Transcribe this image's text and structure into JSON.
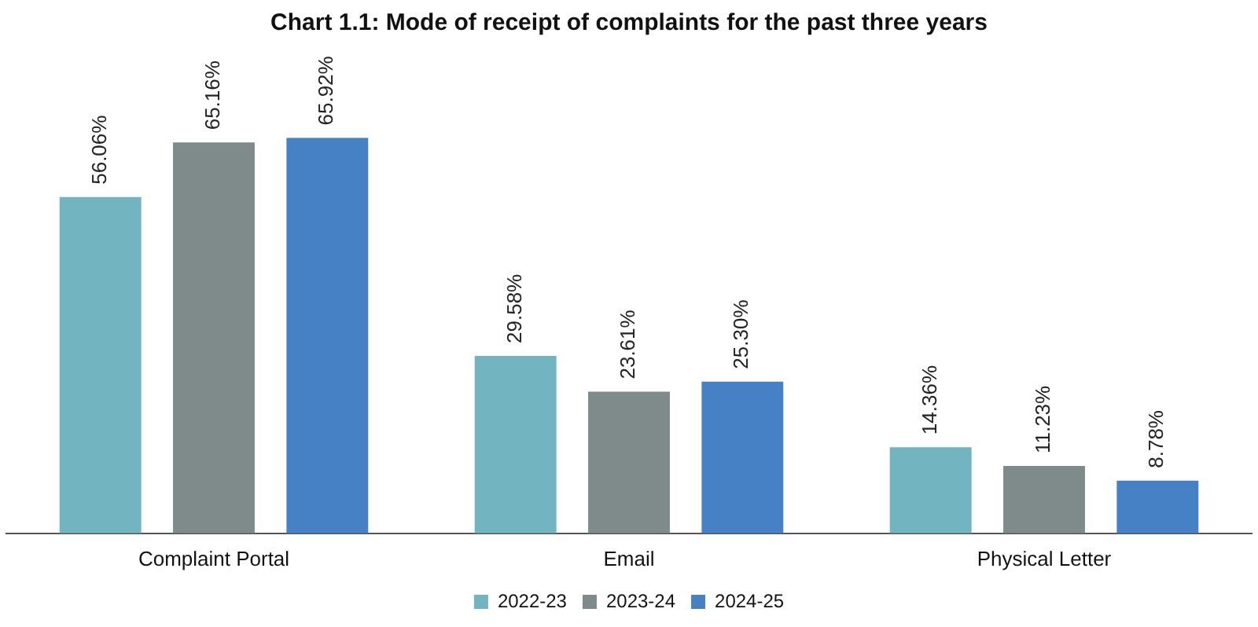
{
  "chart_data": {
    "type": "bar",
    "title": "Chart 1.1: Mode of receipt of complaints for the past three years",
    "categories": [
      "Complaint Portal",
      "Email",
      "Physical Letter"
    ],
    "series": [
      {
        "name": "2022-23",
        "color": "#72b4c0",
        "values": [
          56.06,
          29.58,
          14.36
        ],
        "value_labels": [
          "56.06%",
          "29.58%",
          "14.36%"
        ]
      },
      {
        "name": "2023-24",
        "color": "#7f8b8a",
        "values": [
          65.16,
          23.61,
          11.23
        ],
        "value_labels": [
          "65.16%",
          "23.61%",
          "11.23%"
        ]
      },
      {
        "name": "2024-25",
        "color": "#4581c4",
        "values": [
          65.92,
          25.3,
          8.78
        ],
        "value_labels": [
          "65.92%",
          "25.30%",
          "8.78%"
        ]
      }
    ],
    "legend": "bottom",
    "grid": false
  }
}
